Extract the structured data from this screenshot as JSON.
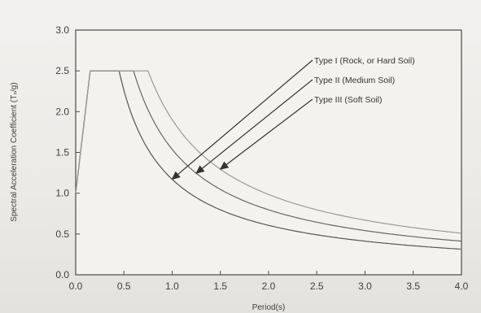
{
  "chart_data": {
    "type": "line",
    "xlabel": "Period(s)",
    "ylabel": "Spectral Acceleration Coefficient (Tₛ/g)",
    "xlim": [
      0,
      4.0
    ],
    "ylim": [
      0,
      3.0
    ],
    "x_ticks": [
      "0.0",
      "0.5",
      "1.0",
      "1.5",
      "2.0",
      "2.5",
      "3.0",
      "3.5",
      "4.0"
    ],
    "y_ticks": [
      "0.0",
      "0.5",
      "1.0",
      "1.5",
      "2.0",
      "2.5",
      "3.0"
    ],
    "grid": false,
    "colors": {
      "type1": "#555555",
      "type2": "#666666",
      "type3": "#9a9a9a"
    },
    "series": [
      {
        "name": "Type I (Rock, or Hard Soil)",
        "ta": 0.15,
        "tb": 0.45,
        "plateau": 2.5,
        "x": [
          0,
          0.15,
          0.45,
          1.0,
          1.5,
          2.0,
          2.5,
          3.0,
          3.5,
          4.0
        ],
        "values": [
          1.0,
          2.5,
          2.5,
          1.0,
          0.6,
          0.46,
          0.36,
          0.28,
          0.23,
          0.2
        ]
      },
      {
        "name": "Type II (Medium Soil)",
        "ta": 0.15,
        "tb": 0.6,
        "plateau": 2.5,
        "x": [
          0,
          0.15,
          0.6,
          1.0,
          1.5,
          2.0,
          2.5,
          3.0,
          3.5,
          4.0
        ],
        "values": [
          1.0,
          2.5,
          2.5,
          1.3,
          0.95,
          0.72,
          0.55,
          0.42,
          0.33,
          0.27
        ]
      },
      {
        "name": "Type III (Soft Soil)",
        "ta": 0.15,
        "tb": 0.75,
        "plateau": 2.5,
        "x": [
          0,
          0.15,
          0.75,
          1.0,
          1.5,
          2.0,
          2.5,
          3.0,
          3.5,
          4.0
        ],
        "values": [
          1.0,
          2.5,
          2.5,
          1.65,
          1.17,
          0.9,
          0.7,
          0.53,
          0.42,
          0.35
        ]
      }
    ],
    "annotations": [
      {
        "text": "Type I (Rock, or Hard Soil)",
        "series": 0,
        "point_x": 1.0
      },
      {
        "text": "Type II (Medium Soil)",
        "series": 1,
        "point_x": 1.25
      },
      {
        "text": "Type III (Soft Soil)",
        "series": 2,
        "point_x": 1.5
      }
    ]
  }
}
